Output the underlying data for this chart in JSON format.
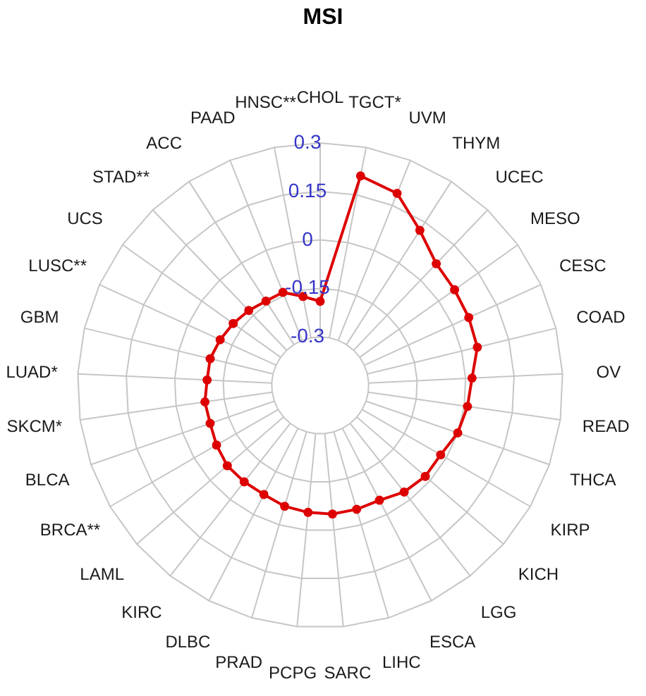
{
  "chart_data": {
    "type": "radar",
    "title": "MSI",
    "categories": [
      "CHOL",
      "TGCT*",
      "UVM",
      "THYM",
      "UCEC",
      "MESO",
      "CESC",
      "COAD",
      "OV",
      "READ",
      "THCA",
      "KIRP",
      "KICH",
      "LGG",
      "ESCA",
      "LIHC",
      "SARC",
      "PCPG",
      "PRAD",
      "DLBC",
      "KIRC",
      "LAML",
      "BRCA**",
      "BLCA",
      "SKCM*",
      "LUAD*",
      "GBM",
      "LUSC**",
      "UCS",
      "STAD**",
      "ACC",
      "PAAD",
      "HNSC**"
    ],
    "series": [
      {
        "color": "#dd0000",
        "values": [
          -0.19,
          0.21,
          0.19,
          0.12,
          0.07,
          0.06,
          0.055,
          0.05,
          0.02,
          0.01,
          0.0,
          -0.02,
          -0.02,
          -0.03,
          -0.05,
          -0.05,
          -0.05,
          -0.055,
          -0.06,
          -0.07,
          -0.07,
          -0.07,
          -0.08,
          -0.09,
          -0.09,
          -0.1,
          -0.1,
          -0.11,
          -0.12,
          -0.13,
          -0.14,
          -0.14,
          -0.17
        ]
      }
    ],
    "ylim": [
      -0.45,
      0.3
    ],
    "yticks": [
      -0.3,
      -0.15,
      0,
      0.15,
      0.3
    ],
    "grid": true,
    "marker": "circle",
    "line_style": "solid"
  }
}
